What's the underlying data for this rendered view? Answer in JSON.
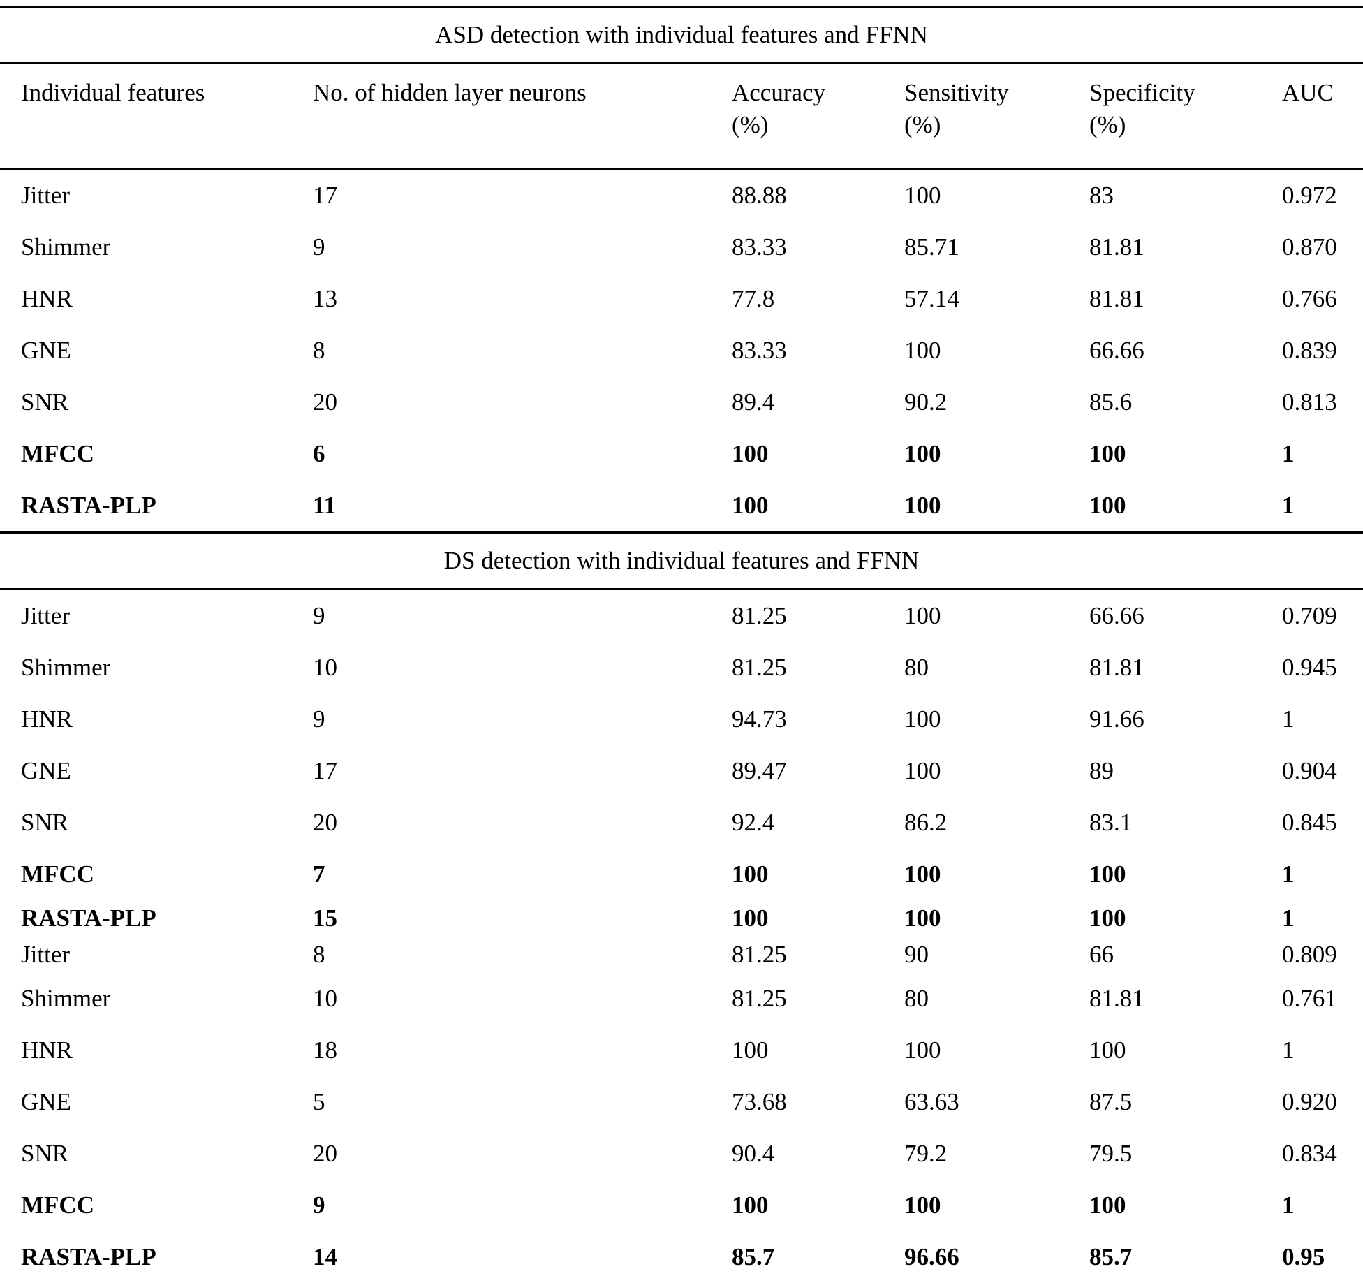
{
  "colors": {
    "background": "#ffffff",
    "text": "#000000",
    "rule": "#000000"
  },
  "table": {
    "header": {
      "features": "Individual features",
      "neurons": "No. of hidden layer neurons",
      "accuracy": [
        "Accuracy",
        "(%)"
      ],
      "sensitivity": [
        "Sensitivity",
        "(%)"
      ],
      "specificity": [
        "Specificity",
        "(%)"
      ],
      "auc": "AUC"
    },
    "sections": [
      {
        "title": "ASD detection with individual features and FFNN",
        "show_header": true,
        "rows": [
          {
            "feature": "Jitter",
            "neurons": "17",
            "accuracy": "88.88",
            "sensitivity": "100",
            "specificity": "83",
            "auc": "0.972",
            "bold": false
          },
          {
            "feature": "Shimmer",
            "neurons": "9",
            "accuracy": "83.33",
            "sensitivity": "85.71",
            "specificity": "81.81",
            "auc": "0.870",
            "bold": false
          },
          {
            "feature": "HNR",
            "neurons": "13",
            "accuracy": "77.8",
            "sensitivity": "57.14",
            "specificity": "81.81",
            "auc": "0.766",
            "bold": false
          },
          {
            "feature": "GNE",
            "neurons": "8",
            "accuracy": "83.33",
            "sensitivity": "100",
            "specificity": "66.66",
            "auc": "0.839",
            "bold": false
          },
          {
            "feature": "SNR",
            "neurons": "20",
            "accuracy": "89.4",
            "sensitivity": "90.2",
            "specificity": "85.6",
            "auc": "0.813",
            "bold": false
          },
          {
            "feature": "MFCC",
            "neurons": "6",
            "accuracy": "100",
            "sensitivity": "100",
            "specificity": "100",
            "auc": "1",
            "bold": true
          },
          {
            "feature": "RASTA-PLP",
            "neurons": "11",
            "accuracy": "100",
            "sensitivity": "100",
            "specificity": "100",
            "auc": "1",
            "bold": true
          }
        ]
      },
      {
        "title": "DS detection with individual features and FFNN",
        "show_header": false,
        "rows": [
          {
            "feature": "Jitter",
            "neurons": "9",
            "accuracy": "81.25",
            "sensitivity": "100",
            "specificity": "66.66",
            "auc": "0.709",
            "bold": false
          },
          {
            "feature": "Shimmer",
            "neurons": "10",
            "accuracy": "81.25",
            "sensitivity": "80",
            "specificity": "81.81",
            "auc": "0.945",
            "bold": false
          },
          {
            "feature": "HNR",
            "neurons": "9",
            "accuracy": "94.73",
            "sensitivity": "100",
            "specificity": "91.66",
            "auc": "1",
            "bold": false
          },
          {
            "feature": "GNE",
            "neurons": "17",
            "accuracy": "89.47",
            "sensitivity": "100",
            "specificity": "89",
            "auc": "0.904",
            "bold": false
          },
          {
            "feature": "SNR",
            "neurons": "20",
            "accuracy": "92.4",
            "sensitivity": "86.2",
            "specificity": "83.1",
            "auc": "0.845",
            "bold": false
          },
          {
            "feature": "MFCC",
            "neurons": "7",
            "accuracy": "100",
            "sensitivity": "100",
            "specificity": "100",
            "auc": "1",
            "bold": true
          },
          {
            "feature": "RASTA-PLP",
            "neurons": "15",
            "accuracy": "100",
            "sensitivity": "100",
            "specificity": "100",
            "auc": "1",
            "bold": true,
            "tight": true
          }
        ]
      },
      {
        "title": "",
        "show_header": false,
        "rows": [
          {
            "feature": "Jitter",
            "neurons": "8",
            "accuracy": "81.25",
            "sensitivity": "90",
            "specificity": "66",
            "auc": "0.809",
            "bold": false,
            "tight": true
          },
          {
            "feature": "Shimmer",
            "neurons": "10",
            "accuracy": "81.25",
            "sensitivity": "80",
            "specificity": "81.81",
            "auc": "0.761",
            "bold": false
          },
          {
            "feature": "HNR",
            "neurons": "18",
            "accuracy": "100",
            "sensitivity": "100",
            "specificity": "100",
            "auc": "1",
            "bold": false
          },
          {
            "feature": "GNE",
            "neurons": "5",
            "accuracy": "73.68",
            "sensitivity": "63.63",
            "specificity": "87.5",
            "auc": "0.920",
            "bold": false
          },
          {
            "feature": "SNR",
            "neurons": "20",
            "accuracy": "90.4",
            "sensitivity": "79.2",
            "specificity": "79.5",
            "auc": "0.834",
            "bold": false
          },
          {
            "feature": "MFCC",
            "neurons": "9",
            "accuracy": "100",
            "sensitivity": "100",
            "specificity": "100",
            "auc": "1",
            "bold": true
          },
          {
            "feature": "RASTA-PLP",
            "neurons": "14",
            "accuracy": "85.7",
            "sensitivity": "96.66",
            "specificity": "85.7",
            "auc": "0.95",
            "bold": true
          }
        ]
      }
    ]
  }
}
